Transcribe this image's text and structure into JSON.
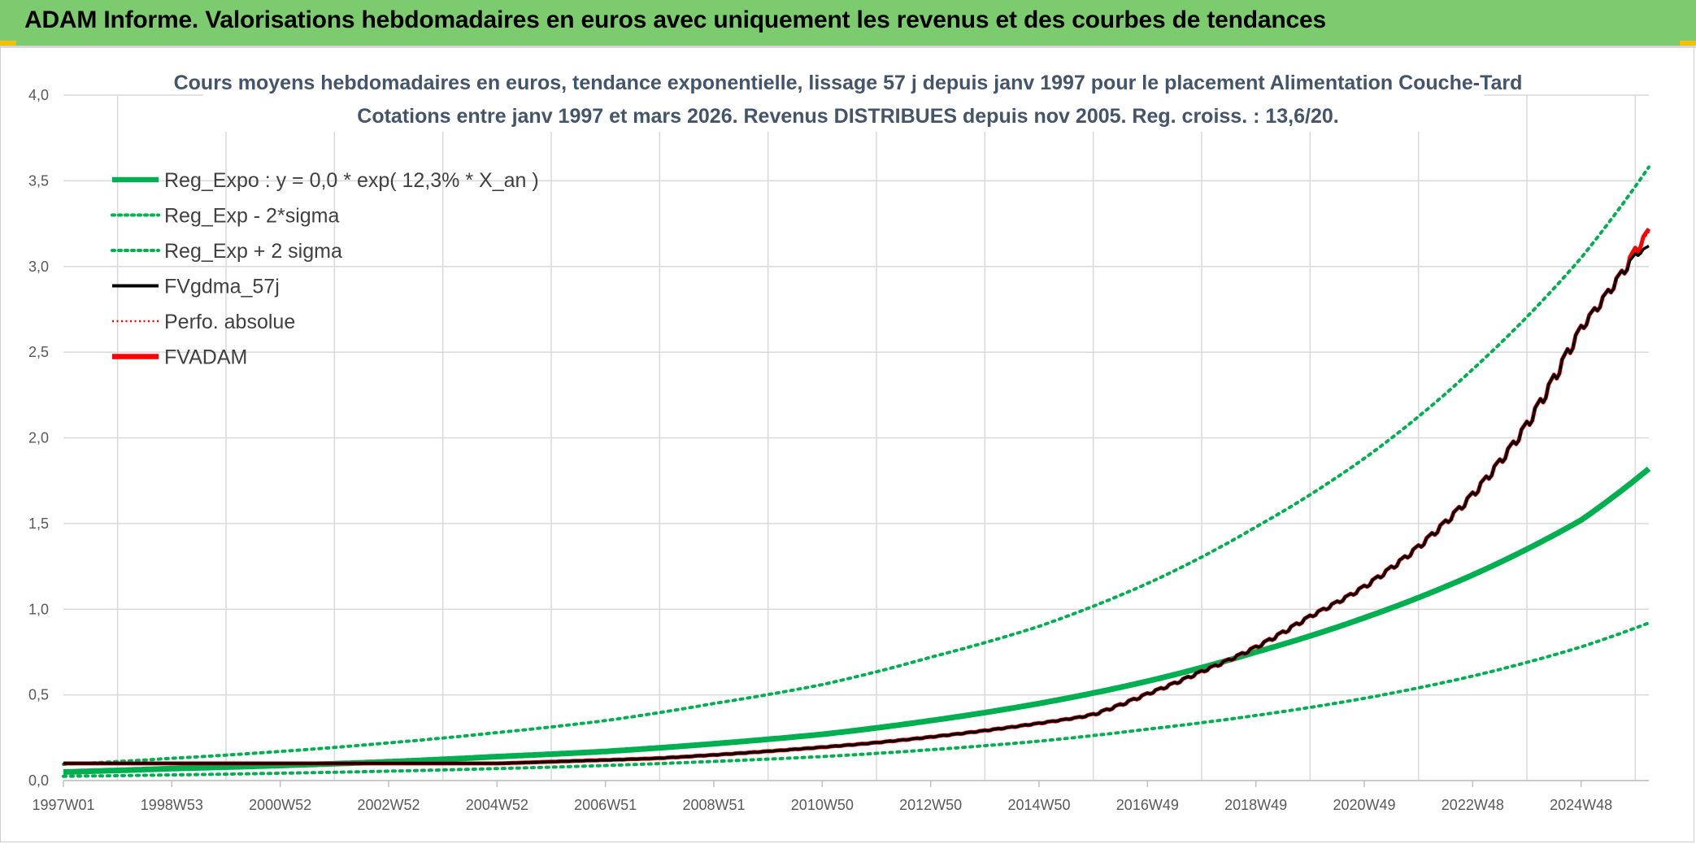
{
  "header": {
    "title": "ADAM Informe. Valorisations hebdomadaires en euros avec uniquement les revenus et des courbes de tendances"
  },
  "colors": {
    "header_bg": "#7ccb6e",
    "green": "#00b050",
    "red": "#ff0000",
    "black": "#000000",
    "grid": "#d9d9d9"
  },
  "chart_data": {
    "type": "line",
    "title_line1": "Cours moyens hebdomadaires en euros, tendance exponentielle, lissage 57 j depuis janv 1997 pour le placement Alimentation Couche-Tard",
    "title_line2": "Cotations entre janv 1997 et mars 2026. Revenus DISTRIBUES depuis nov 2005. Reg. croiss. : 13,6/20.",
    "ylim": [
      0,
      4
    ],
    "yticks": [
      "0,0",
      "0,5",
      "1,0",
      "1,5",
      "2,0",
      "2,5",
      "3,0",
      "3,5",
      "4,0"
    ],
    "xlim": [
      1997.0,
      2026.25
    ],
    "xticks": [
      {
        "x": 1997.0,
        "label": "1997W01"
      },
      {
        "x": 1999.0,
        "label": "1998W53"
      },
      {
        "x": 2001.0,
        "label": "2000W52"
      },
      {
        "x": 2003.0,
        "label": "2002W52"
      },
      {
        "x": 2005.0,
        "label": "2004W52"
      },
      {
        "x": 2007.0,
        "label": "2006W51"
      },
      {
        "x": 2009.0,
        "label": "2008W51"
      },
      {
        "x": 2011.0,
        "label": "2010W50"
      },
      {
        "x": 2013.0,
        "label": "2012W50"
      },
      {
        "x": 2015.0,
        "label": "2014W50"
      },
      {
        "x": 2017.0,
        "label": "2016W49"
      },
      {
        "x": 2019.0,
        "label": "2018W49"
      },
      {
        "x": 2021.0,
        "label": "2020W49"
      },
      {
        "x": 2023.0,
        "label": "2022W48"
      },
      {
        "x": 2025.0,
        "label": "2024W48"
      }
    ],
    "legend": [
      {
        "label": "Reg_Expo : y = 0,0 * exp( 12,3% *  X_an )",
        "color": "#00b050",
        "style": "thick"
      },
      {
        "label": "Reg_Exp - 2*sigma",
        "color": "#00b050",
        "style": "dotted"
      },
      {
        "label": "Reg_Exp + 2 sigma",
        "color": "#00b050",
        "style": "dotted"
      },
      {
        "label": "FVgdma_57j",
        "color": "#000000",
        "style": "solid"
      },
      {
        "label": "Perfo. absolue",
        "color": "#ff0000",
        "style": "dotted-thin"
      },
      {
        "label": "FVADAM",
        "color": "#ff0000",
        "style": "thick"
      }
    ],
    "series": [
      {
        "name": "Reg_Expo",
        "x": [
          1997,
          1999,
          2001,
          2003,
          2005,
          2007,
          2009,
          2011,
          2013,
          2015,
          2017,
          2019,
          2021,
          2023,
          2025,
          2026.25
        ],
        "values": [
          0.05,
          0.07,
          0.088,
          0.11,
          0.14,
          0.17,
          0.215,
          0.27,
          0.35,
          0.45,
          0.58,
          0.75,
          0.95,
          1.2,
          1.52,
          1.82
        ]
      },
      {
        "name": "Reg_Exp - 2*sigma",
        "x": [
          1997,
          1999,
          2001,
          2003,
          2005,
          2007,
          2009,
          2011,
          2013,
          2015,
          2017,
          2019,
          2021,
          2023,
          2025,
          2026.25
        ],
        "values": [
          0.025,
          0.033,
          0.043,
          0.055,
          0.07,
          0.088,
          0.112,
          0.14,
          0.18,
          0.23,
          0.3,
          0.38,
          0.48,
          0.61,
          0.78,
          0.92
        ]
      },
      {
        "name": "Reg_Exp + 2 sigma",
        "x": [
          1997,
          1999,
          2001,
          2003,
          2005,
          2007,
          2009,
          2011,
          2013,
          2015,
          2017,
          2019,
          2021,
          2023,
          2025,
          2026.25
        ],
        "values": [
          0.095,
          0.13,
          0.17,
          0.22,
          0.28,
          0.35,
          0.45,
          0.56,
          0.72,
          0.9,
          1.15,
          1.48,
          1.88,
          2.4,
          3.05,
          3.58
        ]
      },
      {
        "name": "FVgdma_57j",
        "x": [
          1997,
          1999,
          2001,
          2003,
          2005,
          2006,
          2008,
          2010,
          2012,
          2014,
          2016,
          2017,
          2018,
          2019,
          2020,
          2021,
          2022,
          2023,
          2024,
          2025,
          2026,
          2026.25
        ],
        "values": [
          0.1,
          0.1,
          0.1,
          0.1,
          0.1,
          0.11,
          0.13,
          0.17,
          0.22,
          0.29,
          0.38,
          0.5,
          0.63,
          0.77,
          0.95,
          1.12,
          1.35,
          1.65,
          2.05,
          2.62,
          3.05,
          3.12
        ]
      },
      {
        "name": "Perfo. absolue",
        "x": [
          1997,
          1999,
          2001,
          2003,
          2005,
          2006,
          2008,
          2010,
          2012,
          2014,
          2016,
          2017,
          2018,
          2019,
          2020,
          2021,
          2022,
          2023,
          2024,
          2025,
          2026,
          2026.25
        ],
        "values": [
          0.1,
          0.1,
          0.1,
          0.1,
          0.1,
          0.11,
          0.13,
          0.17,
          0.22,
          0.29,
          0.38,
          0.5,
          0.63,
          0.77,
          0.95,
          1.12,
          1.35,
          1.65,
          2.05,
          2.62,
          3.05,
          3.2
        ]
      },
      {
        "name": "FVADAM",
        "x": [
          1997,
          1999,
          2001,
          2003,
          2005,
          2006,
          2008,
          2010,
          2012,
          2014,
          2016,
          2017,
          2018,
          2019,
          2020,
          2021,
          2022,
          2023,
          2024,
          2025,
          2026,
          2026.25
        ],
        "values": [
          0.1,
          0.1,
          0.1,
          0.1,
          0.1,
          0.11,
          0.13,
          0.17,
          0.22,
          0.29,
          0.38,
          0.5,
          0.63,
          0.77,
          0.95,
          1.12,
          1.35,
          1.65,
          2.05,
          2.62,
          3.05,
          3.22
        ]
      }
    ]
  }
}
